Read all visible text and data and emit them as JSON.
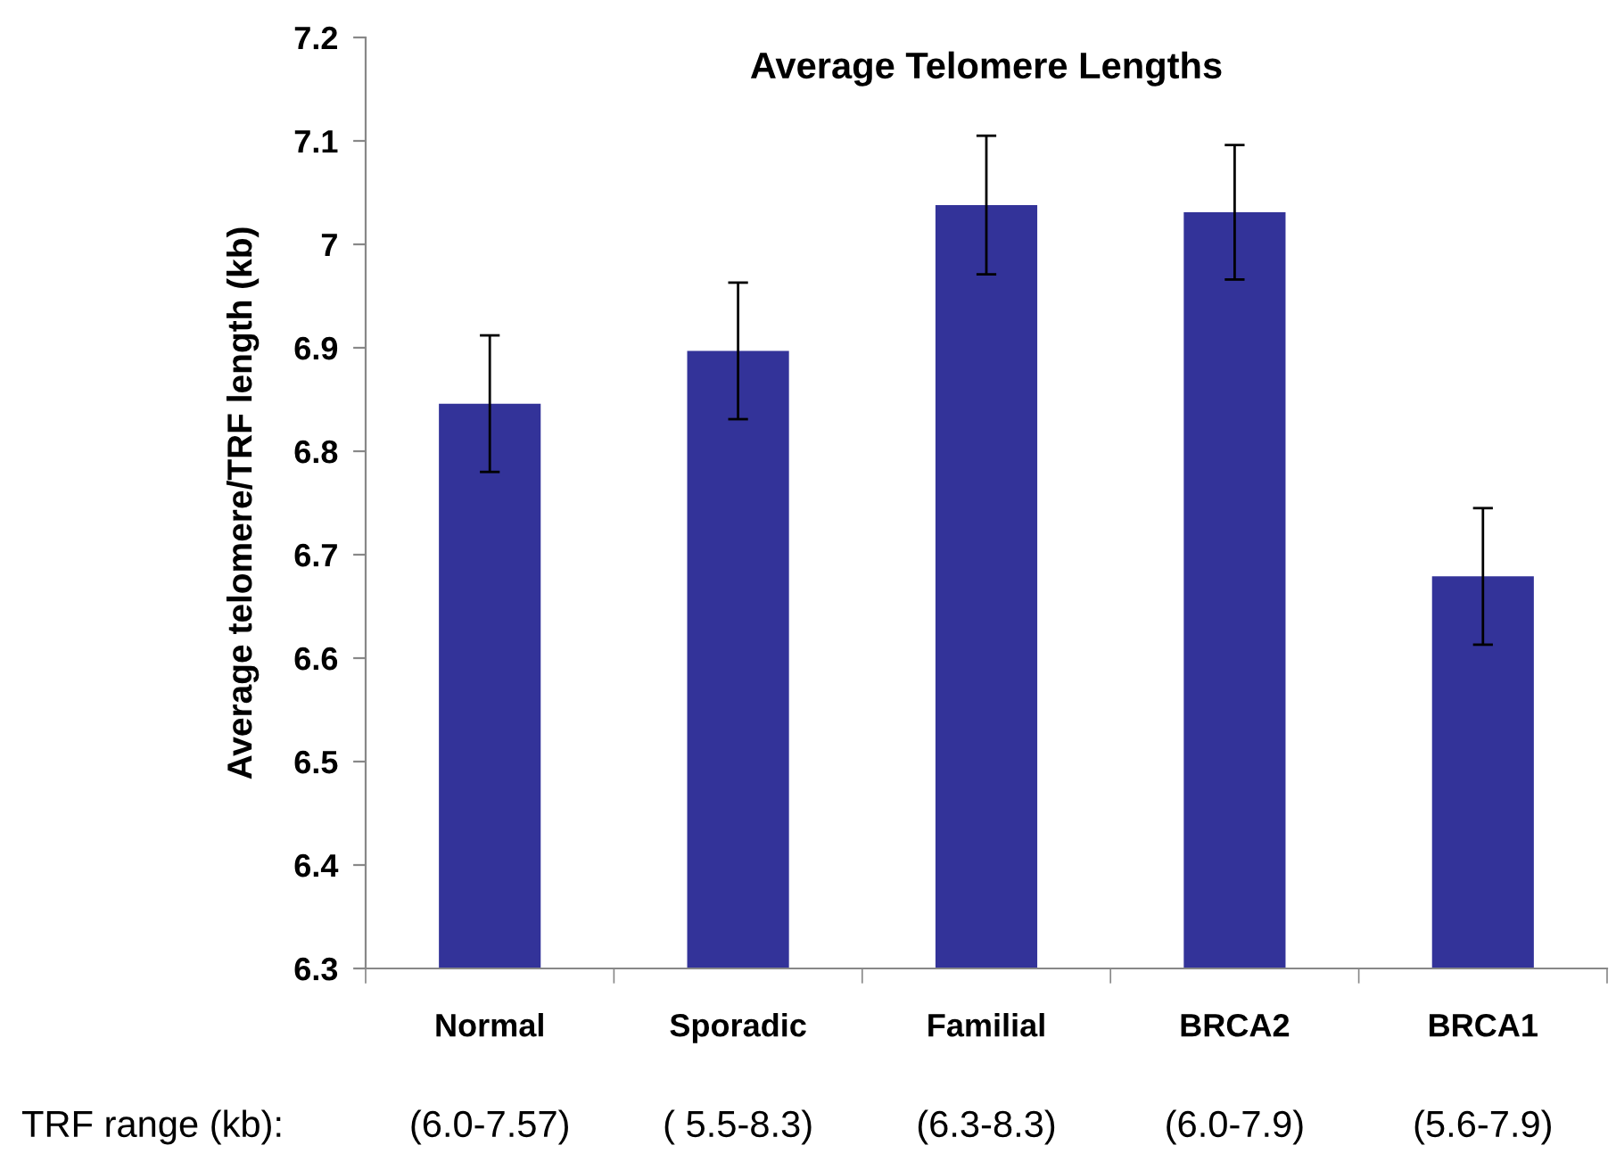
{
  "chart_data": {
    "type": "bar",
    "title": "Average Telomere Lengths",
    "ylabel": "Average telomere/TRF length (kb)",
    "categories": [
      "Normal",
      "Sporadic",
      "Familial",
      "BRCA2",
      "BRCA1"
    ],
    "values": [
      6.846,
      6.897,
      7.038,
      7.031,
      6.679
    ],
    "errors": [
      0.066,
      0.066,
      0.067,
      0.065,
      0.066
    ],
    "color": "#333399",
    "ylim": [
      6.3,
      7.2
    ],
    "yticks": [
      6.3,
      6.4,
      6.5,
      6.6,
      6.7,
      6.8,
      6.9,
      7,
      7.1,
      7.2
    ],
    "grid": false,
    "annotations": [
      "TRF range (kb):",
      "(6.0-7.57)",
      "( 5.5-8.3)",
      "(6.3-8.3)",
      "(6.0-7.9)",
      "(5.6-7.9)"
    ]
  }
}
